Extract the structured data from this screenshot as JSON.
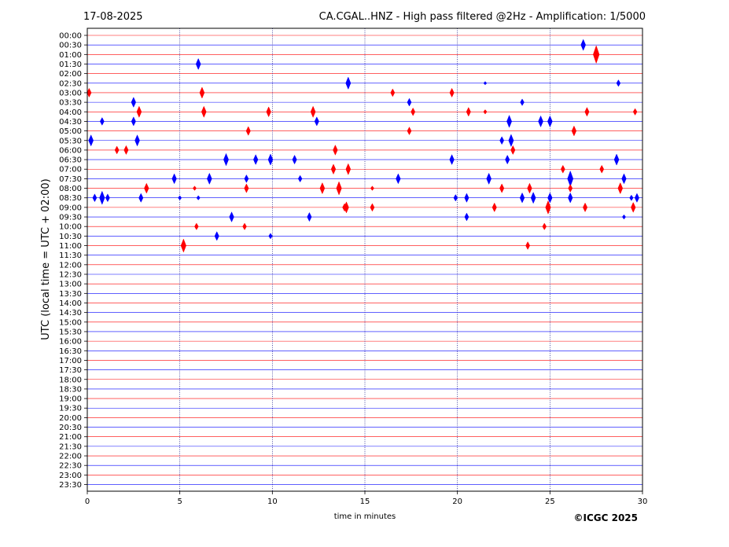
{
  "chart_data": {
    "type": "seismogram",
    "date": "17-08-2025",
    "title": "CA.CGAL..HNZ - High pass filtered @2Hz - Amplification: 1/5000",
    "xlabel": "time in minutes",
    "ylabel": "UTC (local time = UTC + 02:00)",
    "credit": "©ICGC 2025",
    "xlim": [
      0,
      30
    ],
    "x_ticks": [
      "0",
      "5",
      "10",
      "15",
      "20",
      "25",
      "30"
    ],
    "x_tick_values": [
      0,
      5,
      10,
      15,
      20,
      25,
      30
    ],
    "grid": "vertical dotted at every 5 minutes",
    "row_labels": [
      "00:00",
      "00:30",
      "01:00",
      "01:30",
      "02:00",
      "02:30",
      "03:00",
      "03:30",
      "04:00",
      "04:30",
      "05:00",
      "05:30",
      "06:00",
      "06:30",
      "07:00",
      "07:30",
      "08:00",
      "08:30",
      "09:00",
      "09:30",
      "10:00",
      "10:30",
      "11:00",
      "11:30",
      "12:00",
      "12:30",
      "13:00",
      "13:30",
      "14:00",
      "14:30",
      "15:00",
      "15:30",
      "16:00",
      "16:30",
      "17:00",
      "17:30",
      "18:00",
      "18:30",
      "19:00",
      "19:30",
      "20:00",
      "20:30",
      "21:00",
      "21:30",
      "22:00",
      "22:30",
      "23:00",
      "23:30"
    ],
    "trace_colors": [
      "#ff0000",
      "#0000ff"
    ],
    "events": [
      {
        "row": 1,
        "t": 26.8,
        "amp": 1.0
      },
      {
        "row": 2,
        "t": 27.5,
        "amp": 1.6
      },
      {
        "row": 3,
        "t": 6.0,
        "amp": 1.0
      },
      {
        "row": 5,
        "t": 14.1,
        "amp": 1.1
      },
      {
        "row": 5,
        "t": 21.5,
        "amp": 0.3
      },
      {
        "row": 5,
        "t": 28.7,
        "amp": 0.6
      },
      {
        "row": 6,
        "t": 0.1,
        "amp": 0.8
      },
      {
        "row": 6,
        "t": 16.5,
        "amp": 0.7
      },
      {
        "row": 6,
        "t": 19.7,
        "amp": 0.8
      },
      {
        "row": 6,
        "t": 6.2,
        "amp": 1.0
      },
      {
        "row": 7,
        "t": 2.5,
        "amp": 0.9
      },
      {
        "row": 7,
        "t": 17.4,
        "amp": 0.7
      },
      {
        "row": 7,
        "t": 23.5,
        "amp": 0.6
      },
      {
        "row": 8,
        "t": 6.3,
        "amp": 1.0
      },
      {
        "row": 8,
        "t": 21.5,
        "amp": 0.4
      },
      {
        "row": 8,
        "t": 2.8,
        "amp": 1.0
      },
      {
        "row": 8,
        "t": 9.8,
        "amp": 0.9
      },
      {
        "row": 8,
        "t": 12.2,
        "amp": 1.0
      },
      {
        "row": 8,
        "t": 17.6,
        "amp": 0.7
      },
      {
        "row": 8,
        "t": 20.6,
        "amp": 0.8
      },
      {
        "row": 8,
        "t": 27.0,
        "amp": 0.8
      },
      {
        "row": 8,
        "t": 29.6,
        "amp": 0.6
      },
      {
        "row": 9,
        "t": 0.8,
        "amp": 0.7
      },
      {
        "row": 9,
        "t": 2.5,
        "amp": 0.8
      },
      {
        "row": 9,
        "t": 22.8,
        "amp": 1.1
      },
      {
        "row": 9,
        "t": 12.4,
        "amp": 0.8
      },
      {
        "row": 9,
        "t": 24.5,
        "amp": 1.0
      },
      {
        "row": 9,
        "t": 25.0,
        "amp": 1.0
      },
      {
        "row": 10,
        "t": 17.4,
        "amp": 0.7
      },
      {
        "row": 10,
        "t": 26.3,
        "amp": 0.9
      },
      {
        "row": 10,
        "t": 8.7,
        "amp": 0.8
      },
      {
        "row": 11,
        "t": 22.4,
        "amp": 0.7
      },
      {
        "row": 11,
        "t": 22.9,
        "amp": 1.1
      },
      {
        "row": 11,
        "t": 0.2,
        "amp": 1.0
      },
      {
        "row": 11,
        "t": 2.7,
        "amp": 1.0
      },
      {
        "row": 12,
        "t": 1.6,
        "amp": 0.7
      },
      {
        "row": 12,
        "t": 2.1,
        "amp": 0.8
      },
      {
        "row": 12,
        "t": 13.4,
        "amp": 0.9
      },
      {
        "row": 12,
        "t": 23.0,
        "amp": 0.8
      },
      {
        "row": 13,
        "t": 7.5,
        "amp": 1.1
      },
      {
        "row": 13,
        "t": 28.6,
        "amp": 1.0
      },
      {
        "row": 13,
        "t": 9.1,
        "amp": 0.9
      },
      {
        "row": 13,
        "t": 9.9,
        "amp": 1.0
      },
      {
        "row": 13,
        "t": 11.2,
        "amp": 0.8
      },
      {
        "row": 13,
        "t": 19.7,
        "amp": 0.9
      },
      {
        "row": 13,
        "t": 22.7,
        "amp": 0.8
      },
      {
        "row": 14,
        "t": 13.3,
        "amp": 0.9
      },
      {
        "row": 14,
        "t": 14.1,
        "amp": 1.0
      },
      {
        "row": 14,
        "t": 25.7,
        "amp": 0.7
      },
      {
        "row": 14,
        "t": 27.8,
        "amp": 0.7
      },
      {
        "row": 15,
        "t": 21.7,
        "amp": 1.0
      },
      {
        "row": 15,
        "t": 26.1,
        "amp": 1.4
      },
      {
        "row": 15,
        "t": 4.7,
        "amp": 0.9
      },
      {
        "row": 15,
        "t": 6.6,
        "amp": 1.0
      },
      {
        "row": 15,
        "t": 8.6,
        "amp": 0.7
      },
      {
        "row": 15,
        "t": 11.5,
        "amp": 0.6
      },
      {
        "row": 15,
        "t": 16.8,
        "amp": 0.9
      },
      {
        "row": 15,
        "t": 29.0,
        "amp": 0.9
      },
      {
        "row": 16,
        "t": 3.2,
        "amp": 0.9
      },
      {
        "row": 16,
        "t": 13.6,
        "amp": 1.2
      },
      {
        "row": 16,
        "t": 15.4,
        "amp": 0.4
      },
      {
        "row": 16,
        "t": 22.4,
        "amp": 0.8
      },
      {
        "row": 16,
        "t": 23.9,
        "amp": 0.9
      },
      {
        "row": 16,
        "t": 26.1,
        "amp": 0.7
      },
      {
        "row": 16,
        "t": 28.8,
        "amp": 1.0
      },
      {
        "row": 16,
        "t": 5.8,
        "amp": 0.4
      },
      {
        "row": 16,
        "t": 8.6,
        "amp": 0.8
      },
      {
        "row": 16,
        "t": 12.7,
        "amp": 1.0
      },
      {
        "row": 17,
        "t": 1.1,
        "amp": 0.7
      },
      {
        "row": 17,
        "t": 19.9,
        "amp": 0.6
      },
      {
        "row": 17,
        "t": 20.5,
        "amp": 0.8
      },
      {
        "row": 17,
        "t": 25.0,
        "amp": 0.9
      },
      {
        "row": 17,
        "t": 26.1,
        "amp": 0.9
      },
      {
        "row": 17,
        "t": 29.7,
        "amp": 0.8
      },
      {
        "row": 17,
        "t": 0.4,
        "amp": 0.7
      },
      {
        "row": 17,
        "t": 0.8,
        "amp": 1.2
      },
      {
        "row": 17,
        "t": 2.9,
        "amp": 0.8
      },
      {
        "row": 17,
        "t": 5.0,
        "amp": 0.4
      },
      {
        "row": 17,
        "t": 6.0,
        "amp": 0.4
      },
      {
        "row": 17,
        "t": 23.5,
        "amp": 0.9
      },
      {
        "row": 17,
        "t": 24.1,
        "amp": 1.0
      },
      {
        "row": 17,
        "t": 29.4,
        "amp": 0.5
      },
      {
        "row": 18,
        "t": 14.0,
        "amp": 1.0
      },
      {
        "row": 18,
        "t": 15.4,
        "amp": 0.7
      },
      {
        "row": 18,
        "t": 22.0,
        "amp": 0.8
      },
      {
        "row": 18,
        "t": 13.9,
        "amp": 0.7
      },
      {
        "row": 18,
        "t": 24.9,
        "amp": 1.2
      },
      {
        "row": 18,
        "t": 26.9,
        "amp": 0.8
      },
      {
        "row": 18,
        "t": 29.5,
        "amp": 0.9
      },
      {
        "row": 19,
        "t": 7.8,
        "amp": 0.9
      },
      {
        "row": 19,
        "t": 12.0,
        "amp": 0.8
      },
      {
        "row": 19,
        "t": 20.5,
        "amp": 0.7
      },
      {
        "row": 19,
        "t": 29.0,
        "amp": 0.4
      },
      {
        "row": 20,
        "t": 5.9,
        "amp": 0.6
      },
      {
        "row": 20,
        "t": 8.5,
        "amp": 0.6
      },
      {
        "row": 20,
        "t": 24.7,
        "amp": 0.6
      },
      {
        "row": 21,
        "t": 7.0,
        "amp": 0.8
      },
      {
        "row": 21,
        "t": 9.9,
        "amp": 0.5
      },
      {
        "row": 22,
        "t": 5.2,
        "amp": 1.2
      },
      {
        "row": 22,
        "t": 23.8,
        "amp": 0.7
      }
    ]
  }
}
